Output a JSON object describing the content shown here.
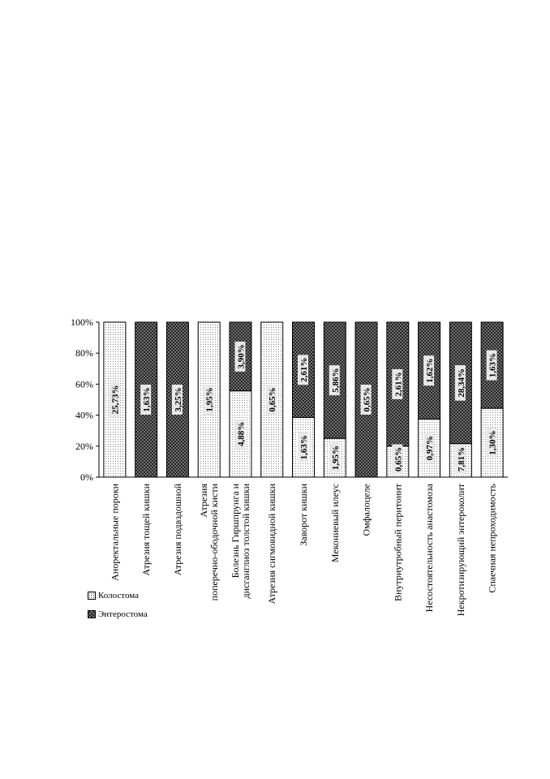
{
  "chart_data": {
    "type": "bar",
    "stacked": true,
    "percent_stacked": true,
    "categories": [
      "Аноректальные пороки",
      "Атрезия тощей кишки",
      "Атрезия подвздошной",
      "Атрезия поперечно-ободочной кисти",
      "Болезнь Гиршпрунга и дисганглиоз толстой кишки",
      "Атрезия сигмовидной кишки",
      "Заворот кишки",
      "Мекониевый илеус",
      "Омфалоцеле",
      "Внутриутробный перитонит",
      "Несостоятельность анастомоза",
      "Некротизирующий энтероколит",
      "Спаечная непроходимость"
    ],
    "series": [
      {
        "name": "Колостома",
        "values": [
          25.73,
          0,
          0,
          1.95,
          4.88,
          0.65,
          1.63,
          1.95,
          0,
          0.65,
          0.97,
          7.81,
          1.3
        ],
        "labels": [
          "25,73%",
          "",
          "",
          "1,95%",
          "4,88%",
          "0,65%",
          "1,63%",
          "1,95%",
          "",
          "0,65%",
          "0,97%",
          "7,81%",
          "1,30%"
        ]
      },
      {
        "name": "Энтеростома",
        "values": [
          0,
          1.63,
          3.25,
          0,
          3.9,
          0,
          2.61,
          5.86,
          0.65,
          2.61,
          1.62,
          28.34,
          1.63
        ],
        "labels": [
          "",
          "1,63%",
          "3,25%",
          "",
          "3,90%",
          "",
          "2,61%",
          "5,86%",
          "0,65%",
          "2,61%",
          "1,62%",
          "28,34%",
          "1,63%"
        ]
      }
    ],
    "y_ticks": [
      "0%",
      "20%",
      "40%",
      "60%",
      "80%",
      "100%"
    ],
    "ylim": [
      0,
      100
    ],
    "grid": false,
    "legend_position": "bottom-left"
  },
  "legend": {
    "kolostoma": "Колостома",
    "enterostoma": "Энтеростома"
  }
}
